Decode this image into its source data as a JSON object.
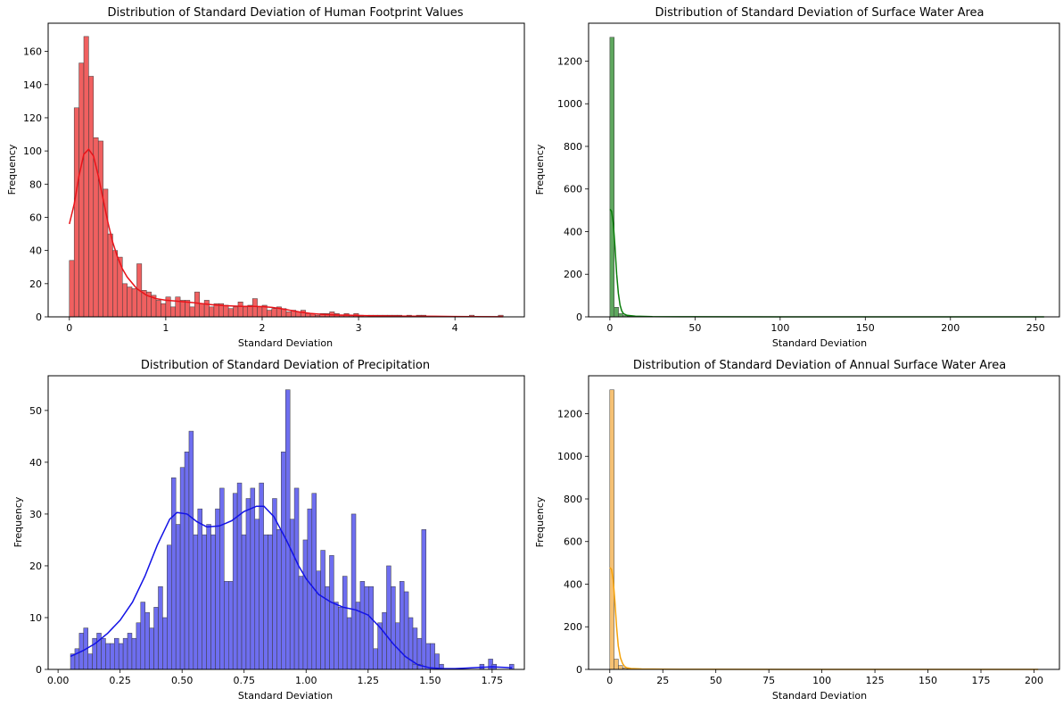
{
  "chart_data": [
    {
      "type": "bar",
      "title": "Distribution of Standard Deviation of Human Footprint Values",
      "xlabel": "Standard Deviation",
      "ylabel": "Frequency",
      "xlim": [
        -0.22,
        4.72
      ],
      "ylim": [
        0,
        177
      ],
      "xticks": [
        0,
        1,
        2,
        3,
        4
      ],
      "yticks": [
        0,
        20,
        40,
        60,
        80,
        100,
        120,
        140,
        160
      ],
      "color": "#f06060",
      "line_color": "#e8141a",
      "bin_start": 0.0,
      "bin_width": 0.05,
      "values": [
        34,
        126,
        153,
        169,
        145,
        108,
        106,
        77,
        50,
        40,
        36,
        20,
        18,
        17,
        32,
        16,
        15,
        13,
        10,
        8,
        12,
        6,
        12,
        10,
        10,
        6,
        15,
        8,
        10,
        6,
        8,
        8,
        7,
        5,
        6,
        9,
        6,
        7,
        11,
        6,
        7,
        4,
        5,
        6,
        5,
        3,
        4,
        3,
        4,
        2,
        2,
        1,
        2,
        2,
        3,
        2,
        1,
        2,
        1,
        2,
        1,
        0,
        1,
        1,
        1,
        1,
        1,
        1,
        1,
        0,
        1,
        0,
        1,
        1,
        0,
        0,
        0,
        0,
        0,
        0,
        0,
        0,
        0,
        1,
        0,
        0,
        0,
        0,
        0,
        1
      ],
      "kde": [
        [
          0.0,
          56
        ],
        [
          0.05,
          68
        ],
        [
          0.1,
          85
        ],
        [
          0.15,
          98
        ],
        [
          0.2,
          101
        ],
        [
          0.25,
          97
        ],
        [
          0.3,
          85
        ],
        [
          0.35,
          71
        ],
        [
          0.4,
          57
        ],
        [
          0.45,
          45
        ],
        [
          0.5,
          36
        ],
        [
          0.55,
          29
        ],
        [
          0.6,
          24
        ],
        [
          0.7,
          17
        ],
        [
          0.8,
          13
        ],
        [
          0.9,
          11
        ],
        [
          1.0,
          10
        ],
        [
          1.1,
          9.5
        ],
        [
          1.2,
          9
        ],
        [
          1.3,
          8.5
        ],
        [
          1.4,
          7.8
        ],
        [
          1.5,
          7.2
        ],
        [
          1.6,
          6.8
        ],
        [
          1.7,
          6.5
        ],
        [
          1.8,
          6.3
        ],
        [
          1.9,
          6.3
        ],
        [
          2.0,
          6.2
        ],
        [
          2.1,
          5.7
        ],
        [
          2.2,
          4.9
        ],
        [
          2.3,
          3.8
        ],
        [
          2.4,
          2.8
        ],
        [
          2.5,
          2.1
        ],
        [
          2.6,
          1.6
        ],
        [
          2.7,
          1.3
        ],
        [
          2.8,
          1.1
        ],
        [
          2.9,
          1.0
        ],
        [
          3.0,
          0.8
        ],
        [
          3.2,
          0.6
        ],
        [
          3.4,
          0.5
        ],
        [
          3.6,
          0.4
        ],
        [
          3.8,
          0.3
        ],
        [
          4.0,
          0.2
        ],
        [
          4.2,
          0.1
        ],
        [
          4.5,
          0.05
        ]
      ]
    },
    {
      "type": "bar",
      "title": "Distribution of Standard Deviation of Surface Water Area",
      "xlabel": "Standard Deviation",
      "ylabel": "Frequency",
      "xlim": [
        -12.5,
        264
      ],
      "ylim": [
        0,
        1378
      ],
      "xticks": [
        0,
        50,
        100,
        150,
        200,
        250
      ],
      "yticks": [
        0,
        200,
        400,
        600,
        800,
        1000,
        1200
      ],
      "color": "#5fa85f",
      "line_color": "#0a7d0a",
      "bin_start": 0.0,
      "bin_width": 2.55,
      "values": [
        1312,
        45,
        15,
        6,
        3,
        2,
        2,
        1,
        1,
        1,
        0,
        1,
        0,
        1,
        0,
        0,
        0,
        0,
        0,
        0,
        0,
        0,
        0,
        0,
        0,
        0,
        0,
        0,
        0,
        0,
        0,
        0,
        0,
        0,
        0,
        0,
        0,
        0,
        0,
        0,
        0,
        0,
        0,
        0,
        0,
        0,
        0,
        0,
        0,
        0,
        0,
        0,
        0,
        0,
        0,
        0,
        0,
        0,
        0,
        0,
        0,
        0,
        0,
        0,
        0,
        0,
        0,
        0,
        0,
        0,
        0,
        0,
        0,
        0,
        0,
        0,
        0,
        0,
        0,
        0,
        0,
        0,
        0,
        0,
        0,
        0,
        0,
        0,
        0,
        0,
        0,
        0,
        0,
        0,
        0,
        0,
        0,
        0,
        0,
        1
      ],
      "kde": [
        [
          0.0,
          505
        ],
        [
          1.0,
          495
        ],
        [
          2.0,
          440
        ],
        [
          3.0,
          330
        ],
        [
          4.0,
          200
        ],
        [
          5.0,
          110
        ],
        [
          6.0,
          55
        ],
        [
          7.0,
          28
        ],
        [
          8.0,
          15
        ],
        [
          10.0,
          7
        ],
        [
          15.0,
          3
        ],
        [
          25.0,
          1
        ],
        [
          50.0,
          0.3
        ],
        [
          100.0,
          0.1
        ],
        [
          150.0,
          0.05
        ],
        [
          255.0,
          0.02
        ]
      ]
    },
    {
      "type": "bar",
      "title": "Distribution of Standard Deviation of Precipitation",
      "xlabel": "Standard Deviation",
      "ylabel": "Frequency",
      "xlim": [
        -0.04,
        1.88
      ],
      "ylim": [
        0,
        56.7
      ],
      "xticks": [
        0.0,
        0.25,
        0.5,
        0.75,
        1.0,
        1.25,
        1.5,
        1.75
      ],
      "xticklabels": [
        "0.00",
        "0.25",
        "0.50",
        "0.75",
        "1.00",
        "1.25",
        "1.50",
        "1.75"
      ],
      "yticks": [
        0,
        10,
        20,
        30,
        40,
        50
      ],
      "color": "#6e6ef0",
      "line_color": "#1212e6",
      "bin_start": 0.05,
      "bin_width": 0.0177,
      "values": [
        3,
        4,
        7,
        8,
        3,
        6,
        7,
        6,
        5,
        5,
        6,
        5,
        6,
        7,
        6,
        9,
        13,
        11,
        8,
        12,
        16,
        10,
        24,
        37,
        28,
        39,
        42,
        46,
        26,
        31,
        26,
        28,
        26,
        31,
        35,
        17,
        17,
        34,
        36,
        26,
        33,
        35,
        29,
        36,
        26,
        26,
        33,
        27,
        42,
        54,
        29,
        35,
        18,
        25,
        31,
        34,
        19,
        23,
        16,
        22,
        13,
        12,
        18,
        10,
        30,
        13,
        17,
        16,
        16,
        4,
        9,
        11,
        20,
        16,
        9,
        17,
        15,
        10,
        8,
        6,
        27,
        5,
        5,
        3,
        1,
        0,
        0,
        0,
        0,
        0,
        0,
        0,
        0,
        0,
        0,
        0,
        0,
        0,
        0,
        0,
        0,
        0,
        0,
        0,
        0,
        0,
        0,
        0,
        0,
        0,
        0,
        0,
        0,
        0,
        0,
        0,
        0,
        0,
        0,
        0,
        0,
        0,
        0,
        0,
        0,
        0,
        0,
        0,
        0,
        0,
        0,
        0,
        0,
        0,
        0,
        0,
        0,
        0,
        0,
        0,
        0,
        0,
        0,
        0,
        0,
        0,
        0,
        0,
        0,
        0,
        0,
        0,
        0,
        0,
        0,
        0,
        0,
        0,
        0,
        0,
        0,
        0,
        0,
        0,
        0,
        0,
        0,
        0,
        0,
        0,
        0,
        0,
        0,
        0,
        0,
        0,
        0,
        0,
        0,
        0,
        0,
        0,
        0,
        0,
        0,
        0
      ],
      "extra_bars": [
        [
          1.43,
          1
        ],
        [
          1.45,
          1
        ],
        [
          1.7,
          1
        ],
        [
          1.735,
          2
        ],
        [
          1.75,
          1
        ],
        [
          1.82,
          1
        ]
      ],
      "kde": [
        [
          0.05,
          2.5
        ],
        [
          0.1,
          3.6
        ],
        [
          0.15,
          5.0
        ],
        [
          0.2,
          7.0
        ],
        [
          0.25,
          9.5
        ],
        [
          0.3,
          13.0
        ],
        [
          0.35,
          18.0
        ],
        [
          0.4,
          24.0
        ],
        [
          0.45,
          29.0
        ],
        [
          0.48,
          30.3
        ],
        [
          0.52,
          30.0
        ],
        [
          0.56,
          28.5
        ],
        [
          0.6,
          27.5
        ],
        [
          0.65,
          27.7
        ],
        [
          0.7,
          28.7
        ],
        [
          0.75,
          30.5
        ],
        [
          0.8,
          31.5
        ],
        [
          0.83,
          31.5
        ],
        [
          0.87,
          29.5
        ],
        [
          0.92,
          25.0
        ],
        [
          0.97,
          20.0
        ],
        [
          1.0,
          17.5
        ],
        [
          1.05,
          14.5
        ],
        [
          1.1,
          13.0
        ],
        [
          1.15,
          12.0
        ],
        [
          1.2,
          11.5
        ],
        [
          1.25,
          10.5
        ],
        [
          1.3,
          8.0
        ],
        [
          1.35,
          5.0
        ],
        [
          1.4,
          2.5
        ],
        [
          1.45,
          0.9
        ],
        [
          1.5,
          0.3
        ],
        [
          1.55,
          0.15
        ],
        [
          1.6,
          0.15
        ],
        [
          1.65,
          0.25
        ],
        [
          1.7,
          0.4
        ],
        [
          1.75,
          0.5
        ],
        [
          1.8,
          0.4
        ],
        [
          1.83,
          0.3
        ]
      ]
    },
    {
      "type": "bar",
      "title": "Distribution of Standard Deviation of Annual Surface Water Area",
      "xlabel": "Standard Deviation",
      "ylabel": "Frequency",
      "xlim": [
        -10.0,
        212
      ],
      "ylim": [
        0,
        1378
      ],
      "xticks": [
        0,
        25,
        50,
        75,
        100,
        125,
        150,
        175,
        200
      ],
      "yticks": [
        0,
        200,
        400,
        600,
        800,
        1000,
        1200
      ],
      "color": "#f6c173",
      "line_color": "#f5a20a",
      "bin_start": 0.0,
      "bin_width": 2.02,
      "values": [
        1312,
        48,
        18,
        7,
        4,
        2,
        2,
        1,
        1,
        1,
        0,
        1,
        0,
        0,
        1,
        0,
        0,
        0,
        0,
        0,
        0,
        0,
        0,
        0,
        0,
        0,
        0,
        0,
        0,
        0,
        0,
        0,
        0,
        0,
        0,
        0,
        0,
        0,
        0,
        0,
        0,
        0,
        0,
        0,
        0,
        0,
        0,
        0,
        0,
        0,
        0,
        0,
        0,
        0,
        0,
        0,
        0,
        0,
        0,
        0,
        0,
        0,
        0,
        0,
        0,
        0,
        0,
        0,
        0,
        0,
        0,
        0,
        0,
        0,
        0,
        0,
        0,
        0,
        0,
        0,
        0,
        0,
        0,
        0,
        0,
        0,
        0,
        0,
        0,
        0,
        0,
        0,
        0,
        0,
        0,
        0,
        0,
        0,
        0,
        1
      ],
      "kde": [
        [
          0.0,
          478
        ],
        [
          0.8,
          470
        ],
        [
          1.6,
          420
        ],
        [
          2.4,
          320
        ],
        [
          3.2,
          200
        ],
        [
          4.0,
          110
        ],
        [
          5.0,
          55
        ],
        [
          6.0,
          28
        ],
        [
          7.0,
          14
        ],
        [
          8.0,
          8
        ],
        [
          10.0,
          4
        ],
        [
          15.0,
          2
        ],
        [
          25.0,
          0.8
        ],
        [
          50.0,
          0.3
        ],
        [
          100.0,
          0.1
        ],
        [
          150.0,
          0.05
        ],
        [
          202.0,
          0.02
        ]
      ]
    }
  ]
}
